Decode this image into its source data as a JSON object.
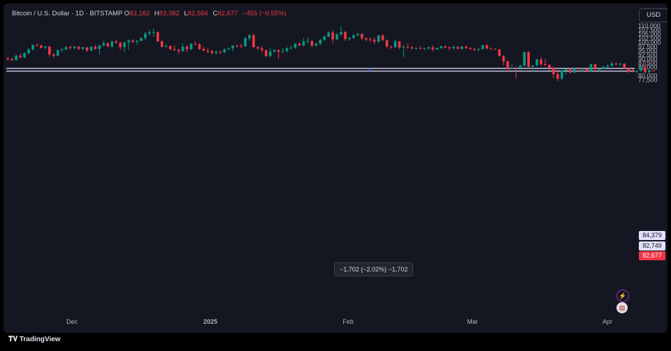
{
  "legend": {
    "symbol": "Bitcoin / U.S. Dollar · 1D · BITSTAMP",
    "o_label": "O",
    "o_value": "83,182",
    "h_label": "H",
    "h_value": "83,382",
    "l_label": "L",
    "l_value": "82,584",
    "c_label": "C",
    "c_value": "82,677",
    "change": "−455 (−0.55%)"
  },
  "currency_button": "USD",
  "footer": {
    "brand": "TradingView"
  },
  "price_tags": {
    "upper": "84,379",
    "middle": "82,749",
    "last": "82,677"
  },
  "measure": {
    "label": "−1,702 (−2.02%) −1,702"
  },
  "colors": {
    "up": "#089981",
    "down": "#f23645",
    "background": "#141722",
    "hline": "#d6d4f5",
    "measure": "#2962ff"
  },
  "icons": [
    "lightning-alert-icon",
    "us-flag-icon",
    "tradingview-logo-icon"
  ],
  "chart_data": {
    "type": "candlestick",
    "y_ticks": [
      "110,000",
      "107,500",
      "105,000",
      "102,500",
      "100,000",
      "97,500",
      "95,000",
      "92,500",
      "90,000",
      "87,500",
      "85,000",
      "80,000",
      "77,500"
    ],
    "ylim": [
      76000,
      111000
    ],
    "x_ticks": [
      "Dec",
      "2025",
      "Feb",
      "Mar",
      "Apr"
    ],
    "horizontal_lines": [
      84379,
      82749
    ],
    "last_price": 82677,
    "ohlc": [
      [
        90600,
        91200,
        89000,
        90000
      ],
      [
        90000,
        90800,
        88800,
        89500
      ],
      [
        89500,
        92500,
        89000,
        92000
      ],
      [
        92000,
        93200,
        90500,
        91000
      ],
      [
        91000,
        94000,
        90500,
        93500
      ],
      [
        93500,
        96500,
        93000,
        95800
      ],
      [
        95800,
        98800,
        95200,
        98500
      ],
      [
        98500,
        99500,
        97500,
        98200
      ],
      [
        98200,
        98600,
        96400,
        96800
      ],
      [
        96800,
        97800,
        95900,
        97500
      ],
      [
        97500,
        98000,
        91500,
        92800
      ],
      [
        92800,
        93500,
        90800,
        92000
      ],
      [
        92000,
        95800,
        91500,
        95400
      ],
      [
        95400,
        96300,
        94200,
        95900
      ],
      [
        95900,
        97800,
        95400,
        97200
      ],
      [
        97200,
        98000,
        95800,
        96600
      ],
      [
        96600,
        97900,
        95800,
        97300
      ],
      [
        97300,
        98000,
        95300,
        96200
      ],
      [
        96200,
        97500,
        95500,
        97000
      ],
      [
        97000,
        97200,
        94200,
        95200
      ],
      [
        95200,
        97800,
        94500,
        97300
      ],
      [
        97300,
        98400,
        95600,
        96100
      ],
      [
        96100,
        98500,
        92800,
        98200
      ],
      [
        98200,
        101000,
        97500,
        99500
      ],
      [
        99500,
        100200,
        97200,
        97600
      ],
      [
        97600,
        101200,
        96500,
        100600
      ],
      [
        100600,
        101600,
        99300,
        99800
      ],
      [
        99800,
        100500,
        95500,
        97200
      ],
      [
        97200,
        100400,
        94200,
        100000
      ],
      [
        100000,
        101800,
        95500,
        101200
      ],
      [
        101200,
        101900,
        99800,
        100400
      ],
      [
        100400,
        101300,
        98500,
        101000
      ],
      [
        101000,
        103000,
        100500,
        102700
      ],
      [
        102700,
        106200,
        101500,
        105300
      ],
      [
        105300,
        107600,
        104000,
        106100
      ],
      [
        106100,
        108300,
        103500,
        106200
      ],
      [
        106200,
        106800,
        100200,
        100700
      ],
      [
        100700,
        101300,
        97000,
        97400
      ],
      [
        97400,
        98900,
        96900,
        97800
      ],
      [
        97800,
        98300,
        95100,
        96000
      ],
      [
        96000,
        98300,
        94800,
        95400
      ],
      [
        95400,
        96300,
        93000,
        94700
      ],
      [
        94700,
        99300,
        94400,
        97500
      ],
      [
        97500,
        98300,
        94100,
        96000
      ],
      [
        96000,
        99500,
        95400,
        99200
      ],
      [
        99200,
        100600,
        98300,
        98800
      ],
      [
        98800,
        99700,
        95600,
        96100
      ],
      [
        96100,
        97500,
        95000,
        95000
      ],
      [
        95000,
        96800,
        93300,
        94800
      ],
      [
        94800,
        95500,
        92600,
        93700
      ],
      [
        93700,
        95300,
        92500,
        94400
      ],
      [
        94400,
        95200,
        92800,
        94000
      ],
      [
        94000,
        96400,
        93600,
        95900
      ],
      [
        95900,
        97000,
        95200,
        96400
      ],
      [
        96400,
        98300,
        94600,
        98100
      ],
      [
        98100,
        98600,
        96900,
        98000
      ],
      [
        98000,
        99200,
        96500,
        97800
      ],
      [
        97800,
        103000,
        97300,
        102500
      ],
      [
        102500,
        104800,
        101200,
        104400
      ],
      [
        104400,
        105300,
        96900,
        97200
      ],
      [
        97200,
        97600,
        95500,
        96400
      ],
      [
        96400,
        98000,
        94000,
        95400
      ],
      [
        95400,
        95700,
        91400,
        91800
      ],
      [
        91800,
        97000,
        91200,
        94500
      ],
      [
        94500,
        95900,
        93900,
        95400
      ],
      [
        95400,
        95800,
        90000,
        94400
      ],
      [
        94400,
        96500,
        93600,
        94800
      ],
      [
        94800,
        97200,
        94100,
        96500
      ],
      [
        96500,
        98000,
        96000,
        96800
      ],
      [
        96800,
        99500,
        96200,
        99200
      ],
      [
        99200,
        100100,
        97800,
        98200
      ],
      [
        98200,
        102700,
        97500,
        100700
      ],
      [
        100700,
        102900,
        99200,
        100900
      ],
      [
        100900,
        101400,
        97200,
        98100
      ],
      [
        98100,
        99700,
        97600,
        99200
      ],
      [
        99200,
        102000,
        98400,
        101600
      ],
      [
        101600,
        104000,
        101000,
        103600
      ],
      [
        103600,
        107000,
        103000,
        106000
      ],
      [
        106000,
        107500,
        99400,
        101800
      ],
      [
        101800,
        105600,
        101500,
        104900
      ],
      [
        104900,
        109800,
        103800,
        106300
      ],
      [
        106300,
        106800,
        100800,
        102100
      ],
      [
        102100,
        103300,
        101000,
        102700
      ],
      [
        102700,
        105000,
        102300,
        104300
      ],
      [
        104300,
        105700,
        103700,
        105200
      ],
      [
        105200,
        105400,
        101400,
        102500
      ],
      [
        102500,
        103300,
        100800,
        101800
      ],
      [
        101800,
        103200,
        100100,
        101700
      ],
      [
        101700,
        103000,
        98800,
        100500
      ],
      [
        100500,
        104000,
        99800,
        104300
      ],
      [
        104300,
        104900,
        100800,
        101400
      ],
      [
        101400,
        101800,
        96500,
        97600
      ],
      [
        97600,
        98100,
        96200,
        97100
      ],
      [
        97100,
        101600,
        96700,
        100600
      ],
      [
        100600,
        101000,
        96000,
        96900
      ],
      [
        96900,
        98600,
        91300,
        97400
      ],
      [
        97400,
        99400,
        96000,
        97000
      ],
      [
        97000,
        98000,
        95800,
        96400
      ],
      [
        96400,
        97200,
        95600,
        96600
      ],
      [
        96600,
        97500,
        95800,
        96300
      ],
      [
        96300,
        96900,
        95700,
        96400
      ],
      [
        96400,
        97500,
        95600,
        97100
      ],
      [
        97100,
        98200,
        94600,
        95800
      ],
      [
        95800,
        97000,
        95500,
        96600
      ],
      [
        96600,
        98000,
        96200,
        97700
      ],
      [
        97700,
        98100,
        96500,
        97000
      ],
      [
        97000,
        97600,
        95200,
        96500
      ],
      [
        96500,
        98300,
        95700,
        97300
      ],
      [
        97300,
        97600,
        95700,
        96200
      ],
      [
        96200,
        98000,
        95600,
        97500
      ],
      [
        97500,
        98100,
        96100,
        96700
      ],
      [
        96700,
        97100,
        95500,
        96100
      ],
      [
        96100,
        96600,
        94800,
        95600
      ],
      [
        95600,
        96400,
        94600,
        96100
      ],
      [
        96100,
        98700,
        95700,
        98300
      ],
      [
        98300,
        99000,
        95800,
        96400
      ],
      [
        96400,
        96800,
        95600,
        96100
      ],
      [
        96100,
        96400,
        95500,
        95700
      ],
      [
        95700,
        96100,
        91600,
        91800
      ],
      [
        91800,
        92300,
        86200,
        88600
      ],
      [
        88600,
        89300,
        82200,
        84200
      ],
      [
        84200,
        86900,
        83800,
        84800
      ],
      [
        84800,
        85700,
        78200,
        84500
      ],
      [
        84500,
        86600,
        83500,
        86000
      ],
      [
        86000,
        94400,
        85400,
        94200
      ],
      [
        94200,
        94700,
        84500,
        85300
      ],
      [
        85300,
        86000,
        82200,
        86200
      ],
      [
        86200,
        90300,
        85600,
        89700
      ],
      [
        89700,
        91000,
        85800,
        87000
      ],
      [
        87000,
        90100,
        85900,
        86400
      ],
      [
        86400,
        86900,
        83200,
        84800
      ],
      [
        84800,
        85600,
        78400,
        81000
      ],
      [
        81000,
        83500,
        76800,
        78200
      ],
      [
        78200,
        84300,
        77500,
        83000
      ],
      [
        83000,
        84100,
        80600,
        83800
      ],
      [
        83800,
        84500,
        81200,
        81900
      ],
      [
        81900,
        84700,
        81400,
        84300
      ],
      [
        84300,
        84900,
        82100,
        83900
      ],
      [
        83900,
        84800,
        82500,
        84200
      ],
      [
        84200,
        84700,
        82200,
        82700
      ],
      [
        82700,
        87100,
        82100,
        86900
      ],
      [
        86900,
        87100,
        82300,
        84000
      ],
      [
        84000,
        84400,
        82600,
        84000
      ],
      [
        84000,
        85700,
        83600,
        85400
      ],
      [
        85400,
        86800,
        84800,
        86000
      ],
      [
        86000,
        88700,
        85400,
        87300
      ],
      [
        87300,
        87900,
        86000,
        86800
      ],
      [
        86800,
        87600,
        85800,
        87200
      ],
      [
        87200,
        87300,
        84200,
        84400
      ],
      [
        84400,
        84500,
        81300,
        82600
      ],
      [
        82600,
        83900,
        82300,
        82400
      ],
      [
        82400,
        83000,
        81300,
        83000
      ],
      [
        83000,
        85500,
        82200,
        84900
      ],
      [
        84900,
        88500,
        81400,
        82100
      ],
      [
        82100,
        83400,
        81700,
        83200
      ],
      [
        83200,
        83400,
        82600,
        82677
      ]
    ]
  }
}
